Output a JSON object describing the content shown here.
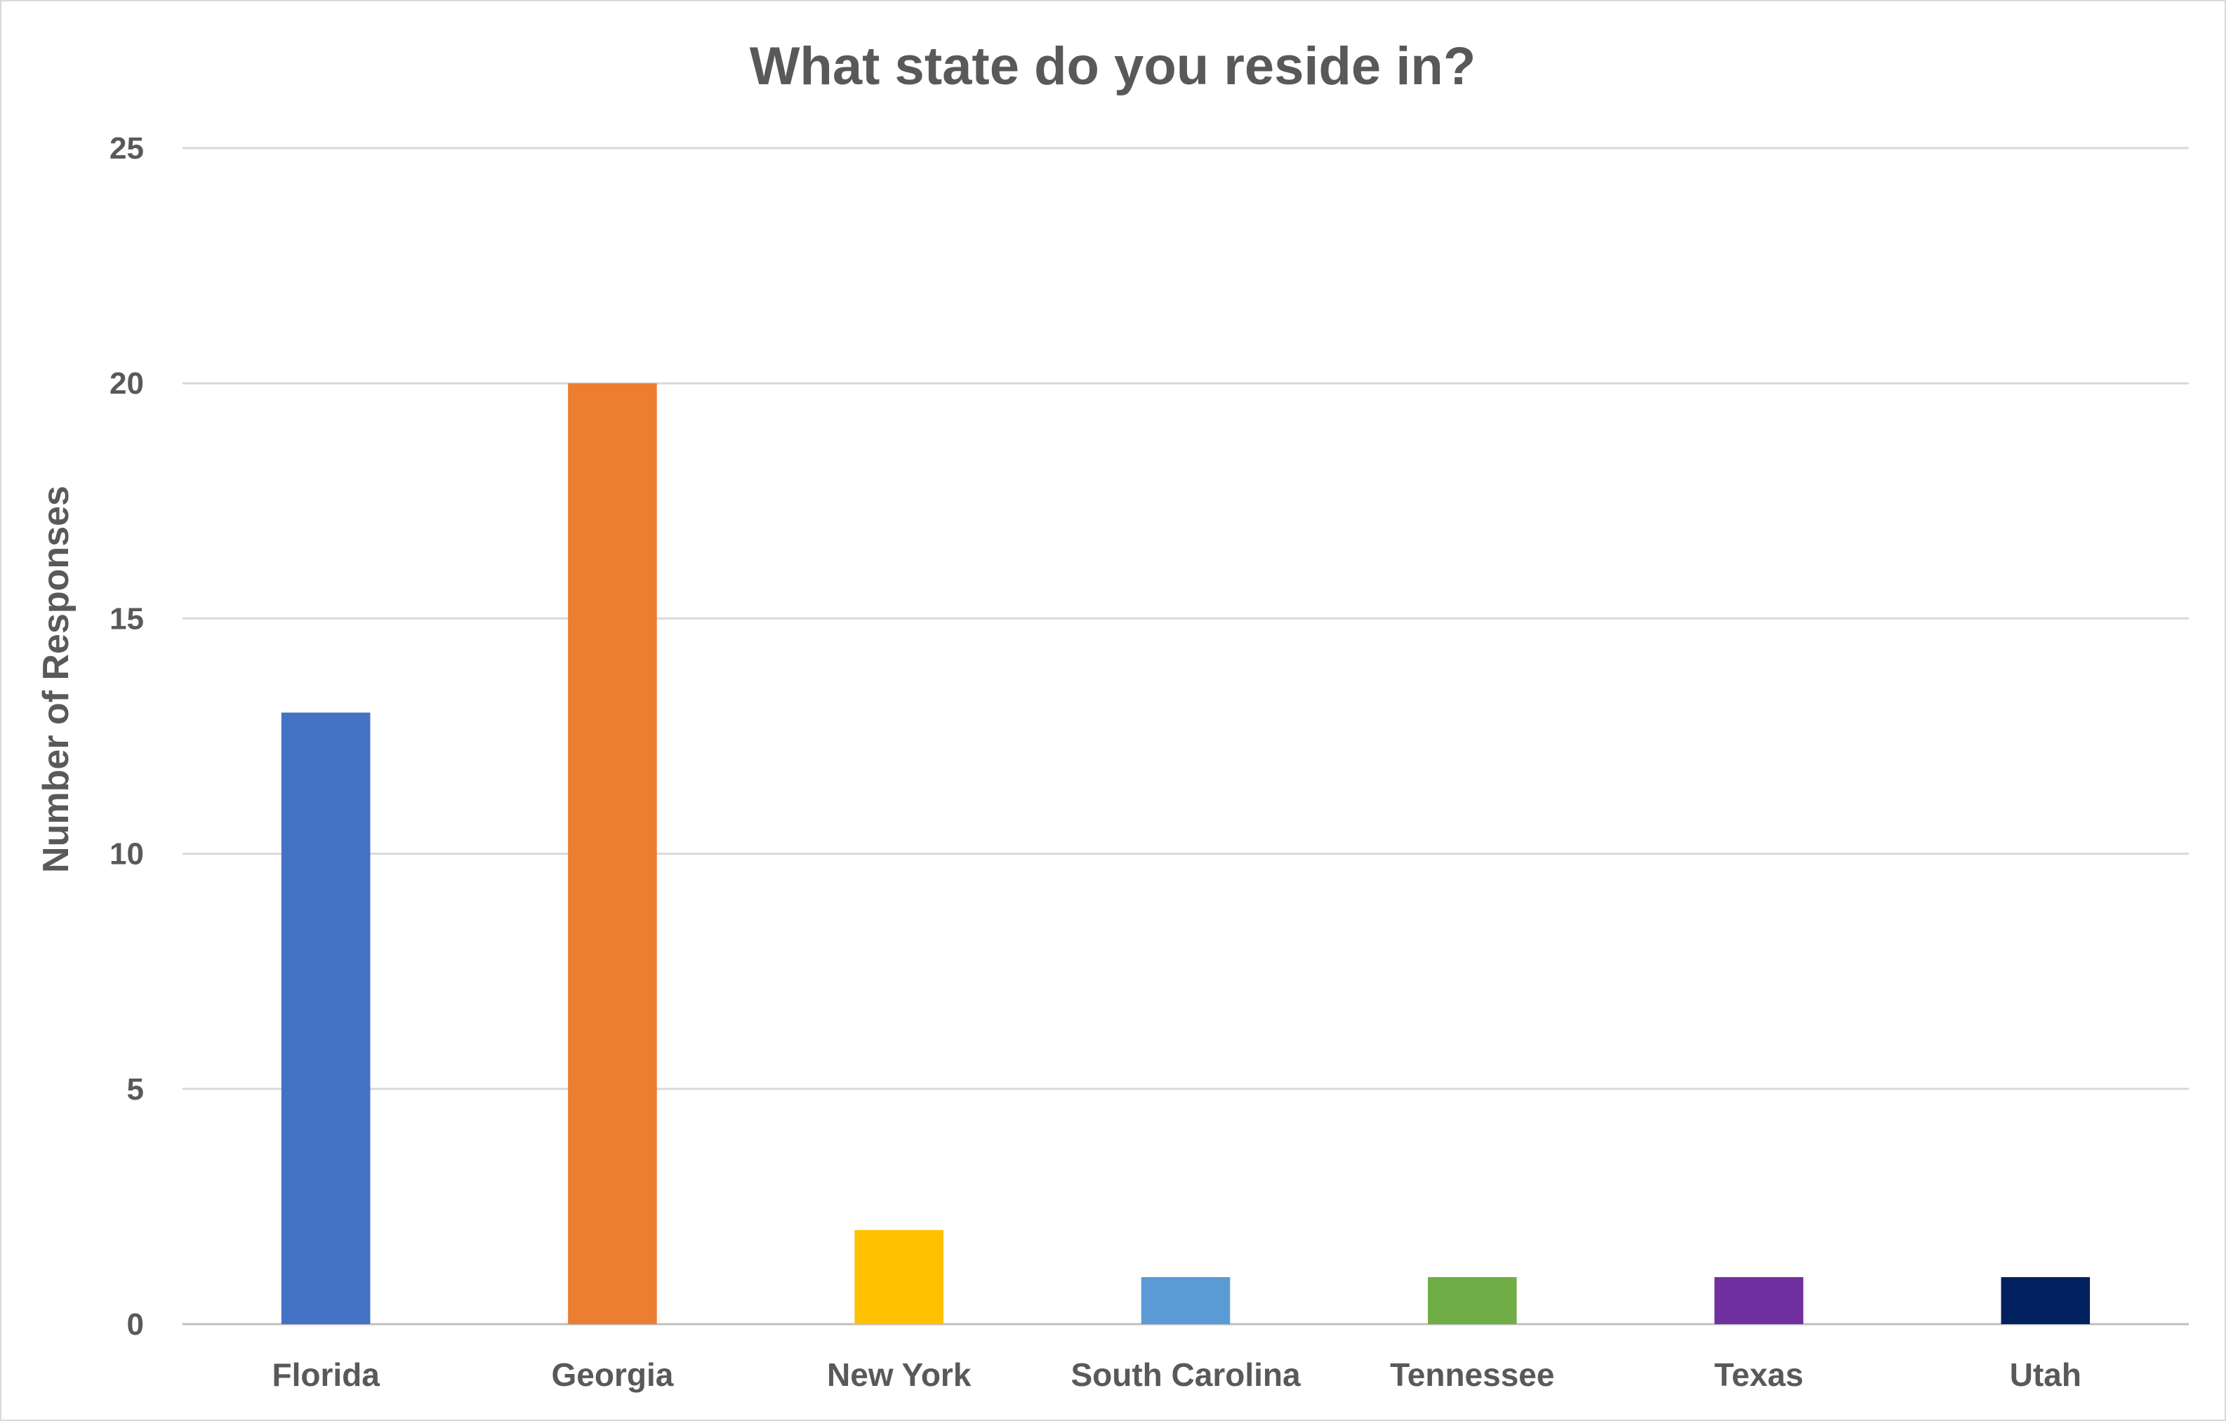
{
  "chart_data": {
    "type": "bar",
    "title": "What state do you reside in?",
    "xlabel": "",
    "ylabel": "Number of Responses",
    "categories": [
      "Florida",
      "Georgia",
      "New York",
      "South Carolina",
      "Tennessee",
      "Texas",
      "Utah"
    ],
    "values": [
      13,
      20,
      2,
      1,
      1,
      1,
      1
    ],
    "colors": [
      "#4472c4",
      "#ed7d31",
      "#ffc000",
      "#5b9bd5",
      "#70ad47",
      "#7030a0",
      "#002060"
    ],
    "ylim": [
      0,
      25
    ],
    "yticks": [
      0,
      5,
      10,
      15,
      20,
      25
    ],
    "grid": true,
    "legend": "none"
  }
}
